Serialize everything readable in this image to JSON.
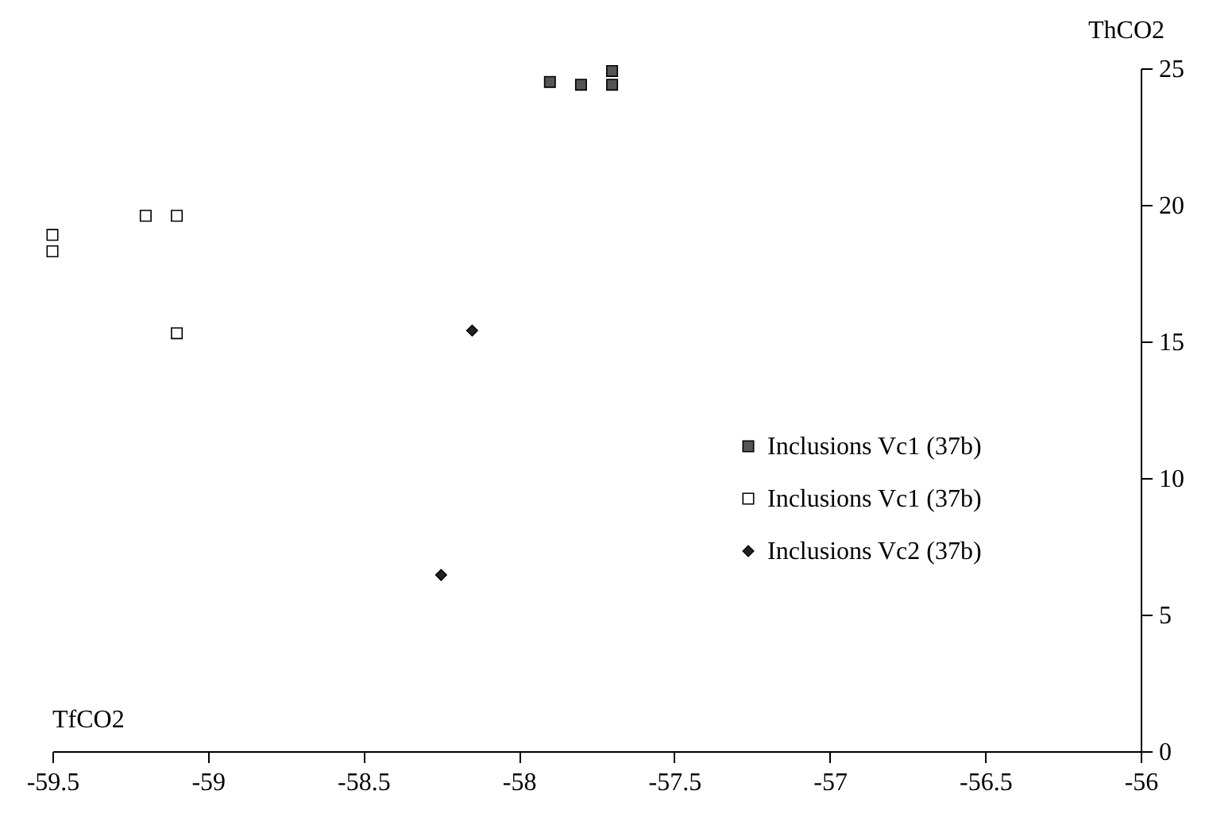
{
  "chart_data": {
    "type": "scatter",
    "xlabel": "TfCO2",
    "ylabel": "ThCO2",
    "xlim": [
      -59.5,
      -56
    ],
    "xticks": [
      -59.5,
      -59,
      -58.5,
      -58,
      -57.5,
      -57,
      -56.5,
      -56
    ],
    "ylim": [
      0,
      25
    ],
    "yticks": [
      0,
      5,
      10,
      15,
      20,
      25
    ],
    "grid": false,
    "legend": "right",
    "series": [
      {
        "name": "Inclusions Vc1 (37b)",
        "color": "#555555",
        "marker": "square",
        "x": [
          -57.9,
          -57.8,
          -57.7,
          -57.7
        ],
        "values": [
          24.5,
          24.4,
          24.4,
          24.9
        ]
      },
      {
        "name": "Inclusions Vc1 (37b)",
        "color": "#ffffff",
        "marker": "square",
        "x": [
          -59.2,
          -59.1,
          -59.5,
          -59.5,
          -59.1
        ],
        "values": [
          19.6,
          19.6,
          18.9,
          18.3,
          15.3
        ]
      },
      {
        "name": "Inclusions Vc2 (37b)",
        "color": "#222222",
        "marker": "diamond",
        "x": [
          -58.15,
          -58.25
        ],
        "values": [
          15.4,
          6.45
        ]
      }
    ]
  }
}
